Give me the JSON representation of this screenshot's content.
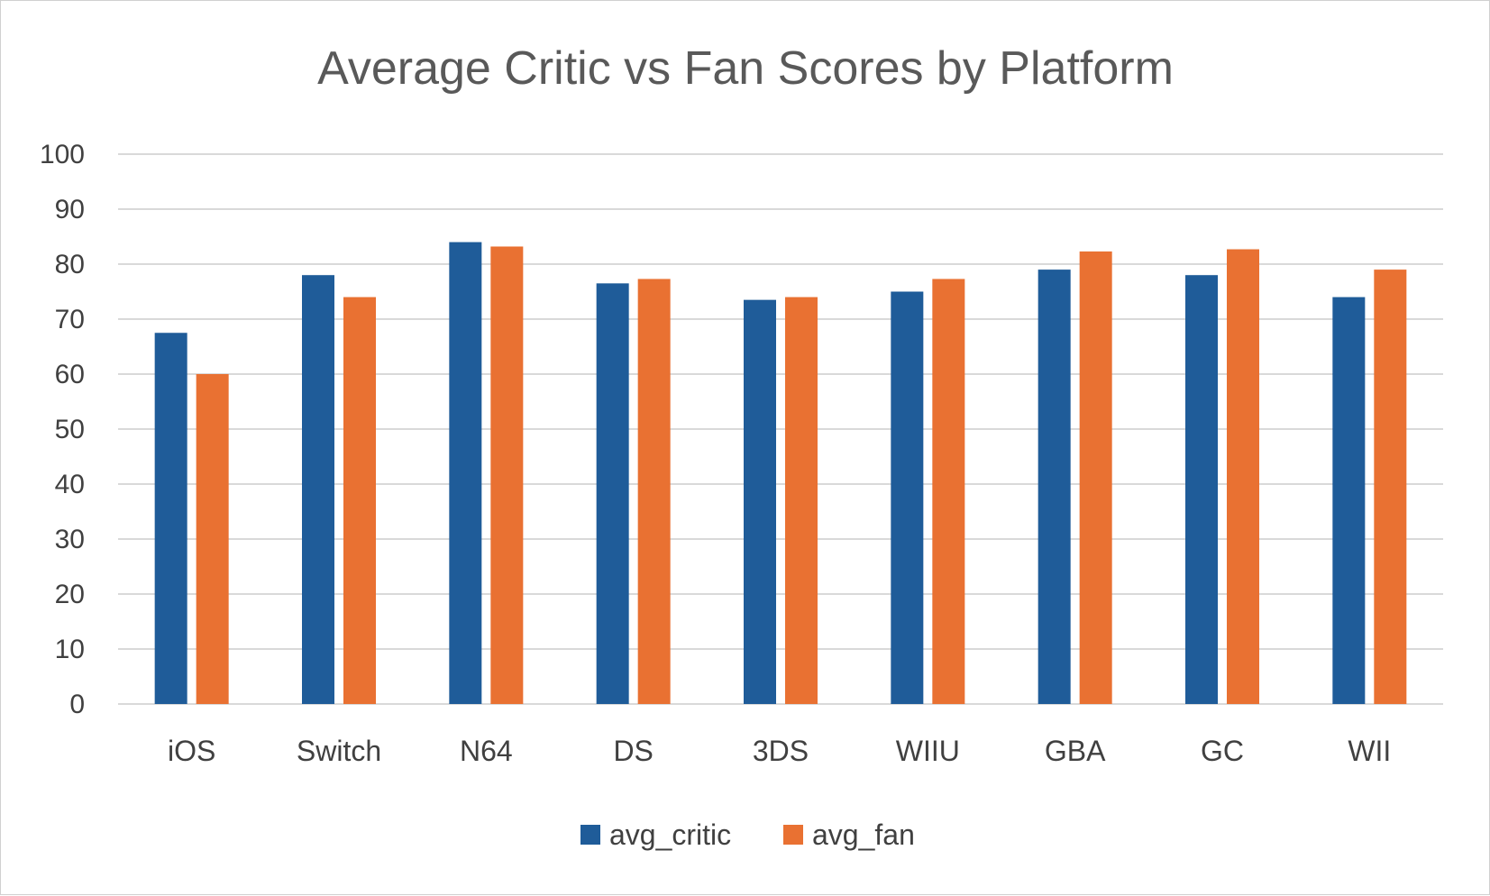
{
  "chart_data": {
    "type": "bar",
    "title": "Average Critic vs Fan Scores by Platform",
    "categories": [
      "iOS",
      "Switch",
      "N64",
      "DS",
      "3DS",
      "WIIU",
      "GBA",
      "GC",
      "WII"
    ],
    "series": [
      {
        "name": "avg_critic",
        "color": "#1f5c99",
        "values": [
          67.5,
          78,
          84,
          76.5,
          73.5,
          75,
          79,
          78,
          74
        ]
      },
      {
        "name": "avg_fan",
        "color": "#e97132",
        "values": [
          60,
          74,
          83.2,
          77.3,
          74,
          77.3,
          82.3,
          82.7,
          79
        ]
      }
    ],
    "ylim": [
      0,
      100
    ],
    "yticks": [
      0,
      10,
      20,
      30,
      40,
      50,
      60,
      70,
      80,
      90,
      100
    ],
    "grid": true,
    "legend_position": "bottom"
  }
}
